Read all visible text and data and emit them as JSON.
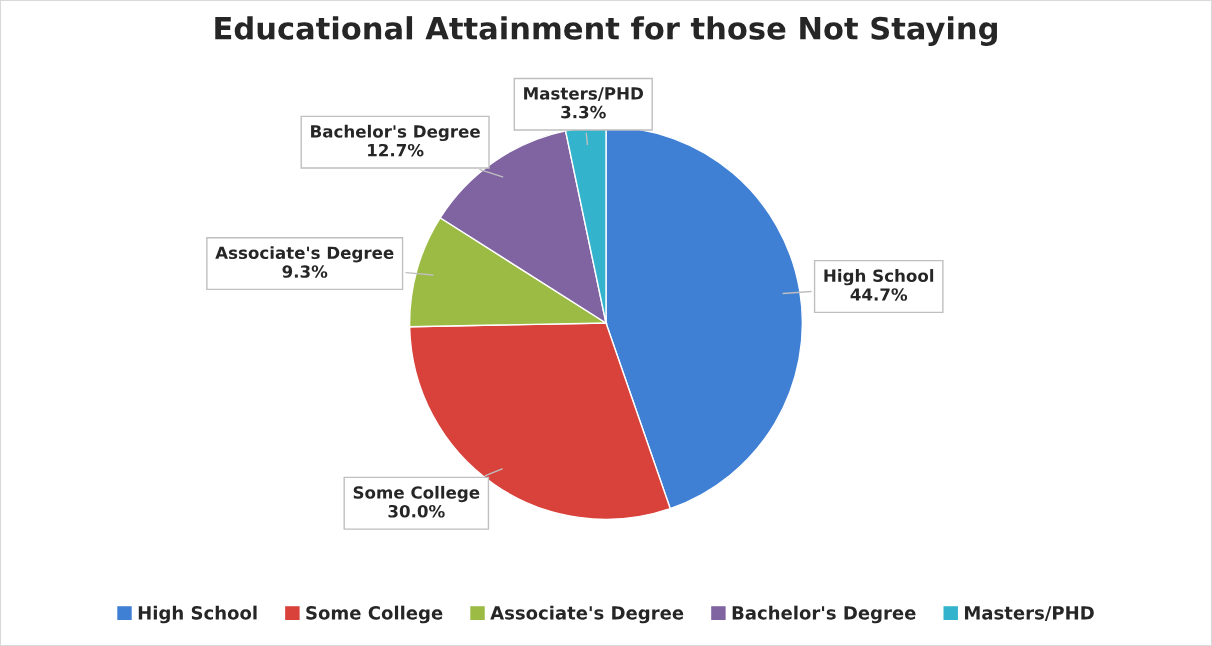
{
  "chart_data": {
    "type": "pie",
    "title": "Educational Attainment for those Not Staying",
    "categories": [
      "High School",
      "Some College",
      "Associate's Degree",
      "Bachelor's Degree",
      "Masters/PHD"
    ],
    "values": [
      44.7,
      30.0,
      9.3,
      12.7,
      3.3
    ],
    "value_labels": [
      "44.7%",
      "30.0%",
      "9.3%",
      "12.7%",
      "3.3%"
    ],
    "colors": [
      "#3f7fd4",
      "#d9413b",
      "#9bbb44",
      "#8064a2",
      "#33b4cc"
    ],
    "legend": "bottom"
  }
}
